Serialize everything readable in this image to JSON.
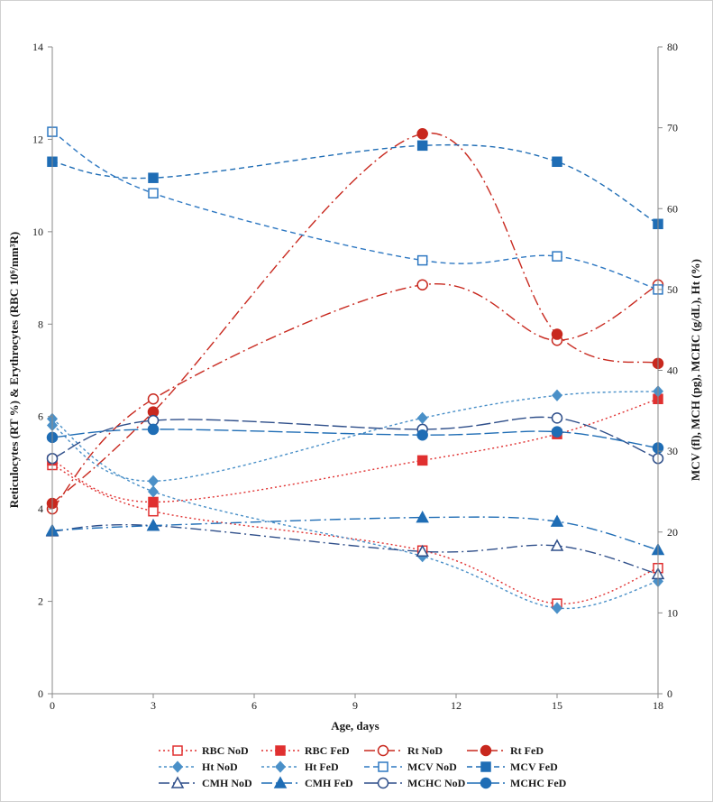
{
  "chart_data": {
    "type": "line",
    "xlabel": "Age, days",
    "ylabel_left": "Reticulocytes (RT %) & Erythrocytes (RBC 10⁶/mm³R)",
    "ylabel_right": "MCV (fl), MCH (pg), MCHC (g/dL), Ht (%)",
    "xlim": [
      0,
      18
    ],
    "x_ticks": [
      "0",
      "3",
      "6",
      "9",
      "12",
      "15",
      "18"
    ],
    "ylim_left": [
      0,
      14
    ],
    "y_ticks_left": [
      "0",
      "2",
      "4",
      "6",
      "8",
      "10",
      "12",
      "14"
    ],
    "ylim_right": [
      0,
      80
    ],
    "y_ticks_right": [
      "0",
      "10",
      "20",
      "30",
      "40",
      "50",
      "60",
      "70",
      "80"
    ],
    "x": [
      0,
      3,
      11,
      15,
      18
    ],
    "series": [
      {
        "name": "RBC NoD",
        "axis": "left",
        "values": [
          4.95,
          3.95,
          3.1,
          1.95,
          2.72
        ],
        "color": "#e03030",
        "dash": "2,3",
        "marker": "square-open"
      },
      {
        "name": "RBC FeD",
        "axis": "left",
        "values": [
          5.05,
          4.15,
          5.05,
          5.62,
          6.38
        ],
        "color": "#e03030",
        "dash": "2,3",
        "marker": "square"
      },
      {
        "name": "Rt NoD",
        "axis": "left",
        "values": [
          4.0,
          6.38,
          8.85,
          7.65,
          8.85
        ],
        "color": "#c8281e",
        "dash": "12,4,2,4",
        "marker": "circle-open"
      },
      {
        "name": "Rt FeD",
        "axis": "left",
        "values": [
          4.12,
          6.1,
          12.12,
          7.78,
          7.15
        ],
        "color": "#c8281e",
        "dash": "12,4,2,4",
        "marker": "circle"
      },
      {
        "name": "Ht NoD",
        "axis": "right",
        "values": [
          33.2,
          26.3,
          34.1,
          36.9,
          37.4
        ],
        "color": "#4a90c8",
        "dash": "3,3",
        "marker": "diamond"
      },
      {
        "name": "Ht FeD",
        "axis": "right",
        "values": [
          34.0,
          25.0,
          17.0,
          10.6,
          13.9
        ],
        "color": "#4a90c8",
        "dash": "3,3",
        "marker": "diamond"
      },
      {
        "name": "MCV NoD",
        "axis": "right",
        "values": [
          69.5,
          61.9,
          53.6,
          54.1,
          50.0
        ],
        "color": "#2e78c2",
        "dash": "6,4",
        "marker": "square-open"
      },
      {
        "name": "MCV FeD",
        "axis": "right",
        "values": [
          65.8,
          63.8,
          67.8,
          65.8,
          58.1
        ],
        "color": "#1f6db5",
        "dash": "6,4",
        "marker": "square"
      },
      {
        "name": "CMH NoD",
        "axis": "right",
        "values": [
          20.1,
          20.8,
          17.6,
          18.3,
          14.8
        ],
        "color": "#2f4f8a",
        "dash": "12,4,2,4",
        "marker": "triangle-open"
      },
      {
        "name": "CMH FeD",
        "axis": "right",
        "values": [
          20.2,
          20.8,
          21.8,
          21.3,
          17.8
        ],
        "color": "#1f6db5",
        "dash": "12,4,2,4",
        "marker": "triangle"
      },
      {
        "name": "MCHC NoD",
        "axis": "right",
        "values": [
          29.1,
          33.8,
          32.7,
          34.1,
          29.1
        ],
        "color": "#2f4f8a",
        "dash": "16,4",
        "marker": "circle-open"
      },
      {
        "name": "MCHC FeD",
        "axis": "right",
        "values": [
          31.7,
          32.7,
          32.0,
          32.4,
          30.4
        ],
        "color": "#1f6db5",
        "dash": "16,4",
        "marker": "circle"
      }
    ],
    "legend_position": "bottom",
    "grid": false
  }
}
